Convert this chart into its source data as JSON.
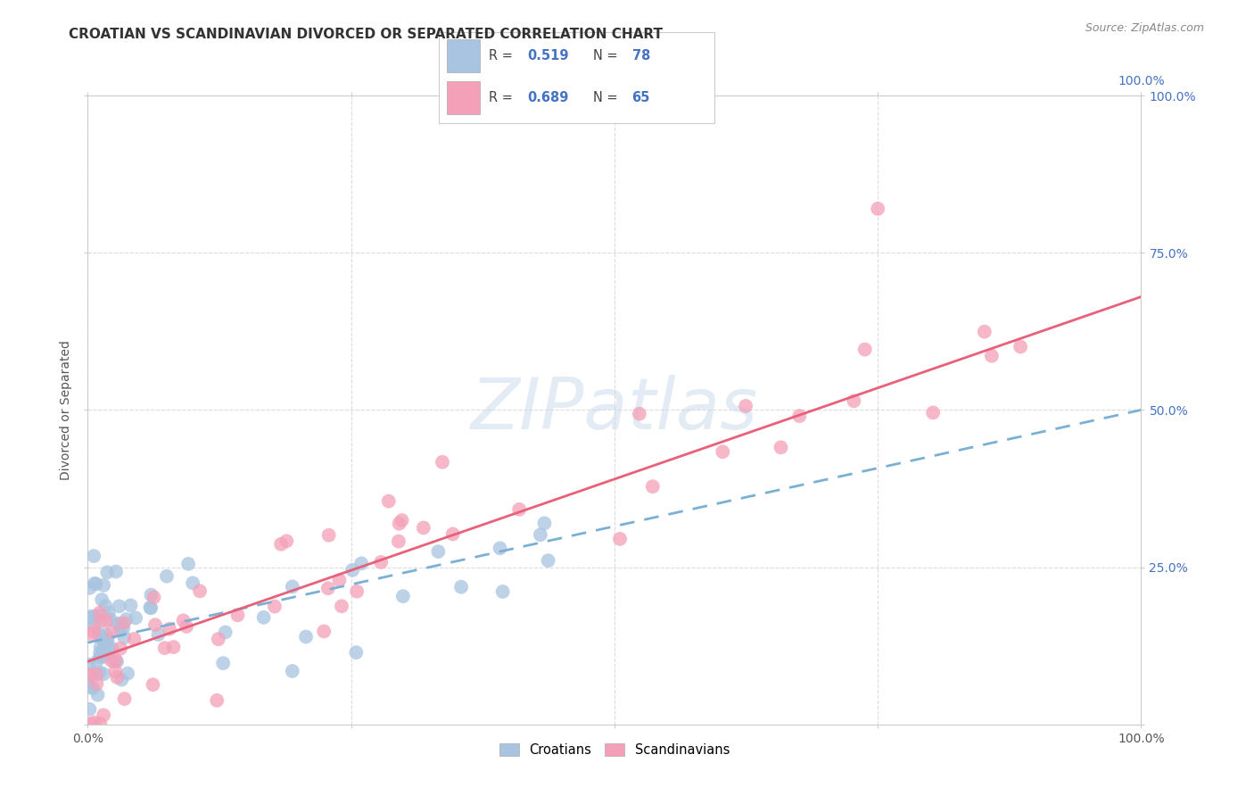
{
  "title": "CROATIAN VS SCANDINAVIAN DIVORCED OR SEPARATED CORRELATION CHART",
  "source": "Source: ZipAtlas.com",
  "ylabel": "Divorced or Separated",
  "xlim": [
    0,
    1
  ],
  "ylim": [
    0,
    1
  ],
  "watermark_text": "ZIPatlas",
  "croatian_color": "#a8c4e0",
  "scandinavian_color": "#f4a0b8",
  "R_croatian": "0.519",
  "N_croatian": "78",
  "R_scandinavian": "0.689",
  "N_scandinavian": "65",
  "grid_color": "#cccccc",
  "line_color_croatian": "#7ab0d4",
  "line_color_scandinavian": "#e8607a",
  "bg_color": "#ffffff",
  "title_fontsize": 11,
  "axis_label_fontsize": 10,
  "tick_fontsize": 10,
  "source_fontsize": 9,
  "right_tick_labels": [
    "",
    "25.0%",
    "50.0%",
    "75.0%",
    "100.0%"
  ],
  "top_tick_label": "100.0%",
  "x_tick_labels_bottom": [
    "0.0%",
    "",
    "",
    "",
    "100.0%"
  ],
  "cro_line_start_y": 0.13,
  "cro_line_end_y": 0.5,
  "scan_line_start_y": 0.1,
  "scan_line_end_y": 0.68
}
